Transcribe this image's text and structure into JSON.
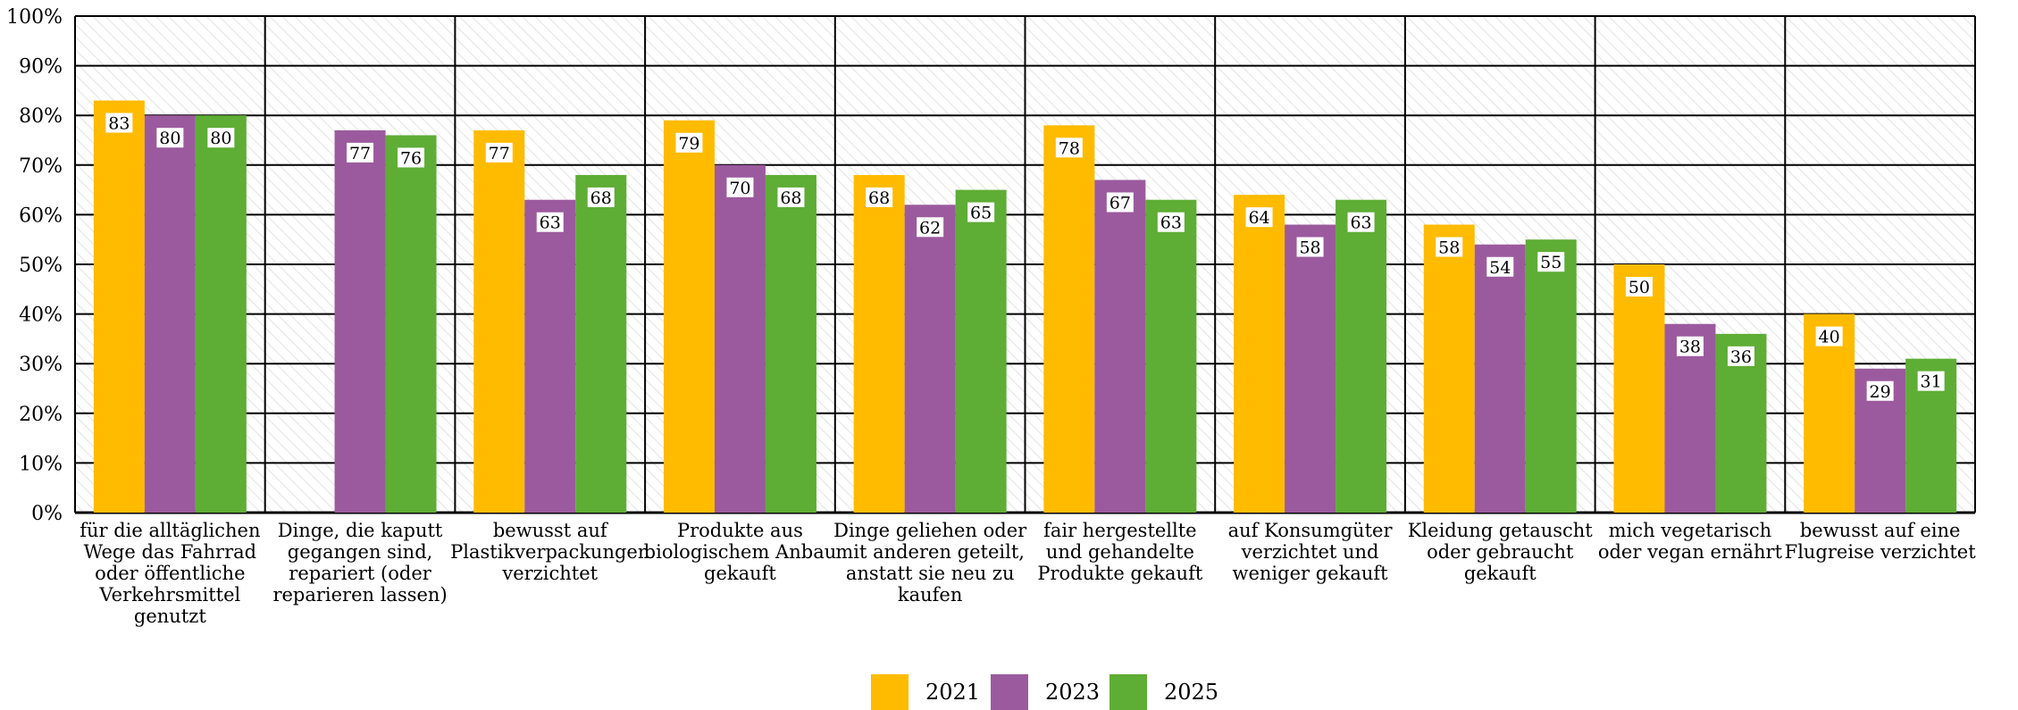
{
  "chart_data": {
    "type": "bar",
    "categories": [
      [
        "für die alltäglichen",
        "Wege das Fahrrad",
        "oder öffentliche",
        "Verkehrsmittel",
        "genutzt"
      ],
      [
        "Dinge, die kaputt",
        "gegangen sind,",
        "repariert (oder",
        "reparieren lassen)"
      ],
      [
        "bewusst auf",
        "Plastikverpackungen",
        "verzichtet"
      ],
      [
        "Produkte aus",
        "biologischem Anbau",
        "gekauft"
      ],
      [
        "Dinge geliehen oder",
        "mit anderen geteilt,",
        "anstatt sie neu zu",
        "kaufen"
      ],
      [
        "fair hergestellte",
        "und gehandelte",
        "Produkte gekauft"
      ],
      [
        "auf Konsumgüter",
        "verzichtet und",
        "weniger gekauft"
      ],
      [
        "Kleidung getauscht",
        "oder gebraucht",
        "gekauft"
      ],
      [
        "mich vegetarisch",
        "oder vegan ernährt"
      ],
      [
        "bewusst auf eine",
        "Flugreise verzichtet"
      ]
    ],
    "series": [
      {
        "name": "2021",
        "color": "#FFBB00",
        "values": [
          83,
          null,
          77,
          79,
          68,
          78,
          64,
          58,
          50,
          40
        ]
      },
      {
        "name": "2023",
        "color": "#9B5A9E",
        "values": [
          80,
          77,
          63,
          70,
          62,
          67,
          58,
          54,
          38,
          29
        ]
      },
      {
        "name": "2025",
        "color": "#5EAD35",
        "values": [
          80,
          76,
          68,
          68,
          65,
          63,
          63,
          55,
          36,
          31
        ]
      }
    ],
    "yticks": [
      "0%",
      "10%",
      "20%",
      "30%",
      "40%",
      "50%",
      "60%",
      "70%",
      "80%",
      "90%",
      "100%"
    ],
    "ylim": [
      0,
      100
    ],
    "grid": true,
    "legend_position": "bottom-center"
  }
}
